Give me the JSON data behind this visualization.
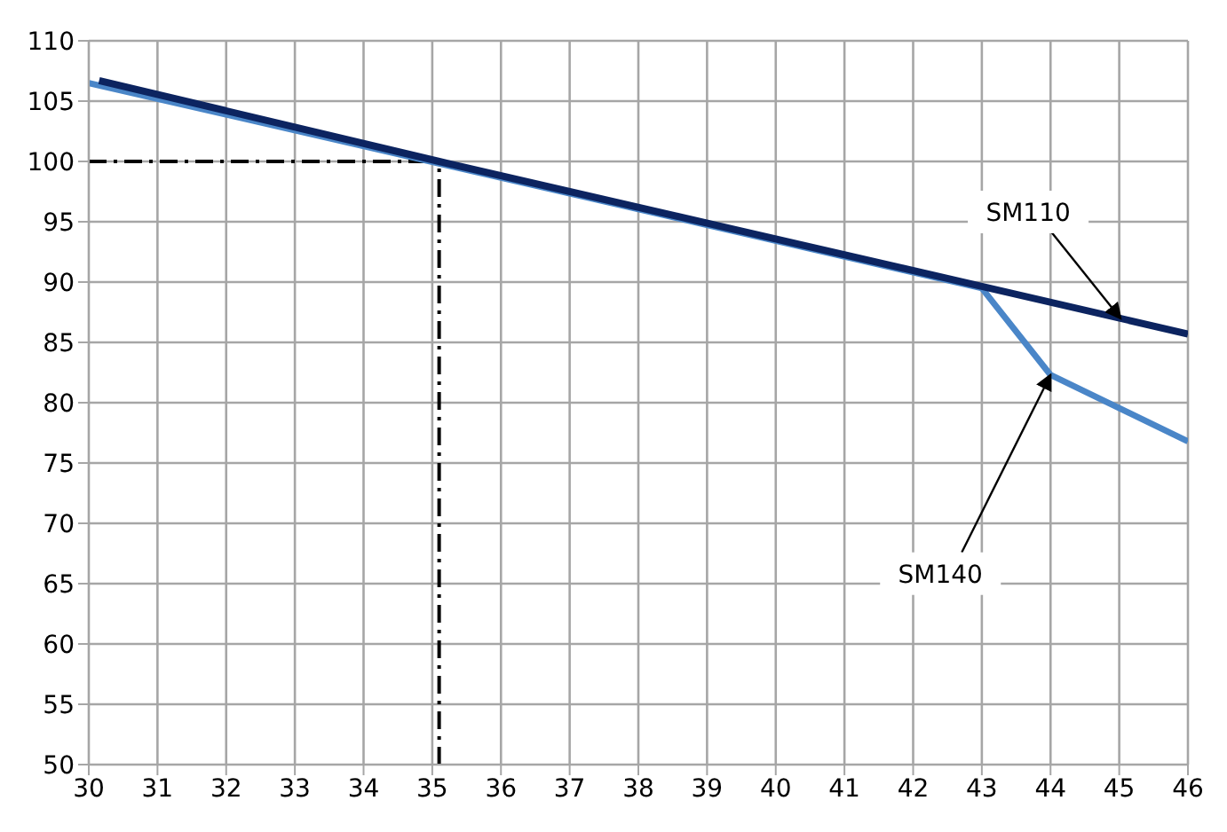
{
  "chart_data": {
    "type": "line",
    "series": [
      {
        "name": "SM140",
        "color": "#4a86c8",
        "x": [
          30,
          43,
          44,
          46
        ],
        "values": [
          106.5,
          89.5,
          82.3,
          76.8
        ]
      },
      {
        "name": "SM110",
        "color": "#0c2460",
        "x": [
          30.15,
          35.1,
          46
        ],
        "values": [
          106.7,
          100,
          85.7
        ]
      }
    ],
    "xlim": [
      30,
      46
    ],
    "xticks": [
      30,
      31,
      32,
      33,
      34,
      35,
      36,
      37,
      38,
      39,
      40,
      41,
      42,
      43,
      44,
      45,
      46
    ],
    "ylim": [
      50,
      110
    ],
    "yticks": [
      50,
      55,
      60,
      65,
      70,
      75,
      80,
      85,
      90,
      95,
      100,
      105,
      110
    ],
    "grid": true,
    "marker": "none",
    "line_style": "solid",
    "ref_lines": [
      {
        "axis": "y",
        "value": 100,
        "color": "#000000",
        "line_style": "dashdot"
      },
      {
        "axis": "x",
        "value": 35.1,
        "color": "#000000",
        "line_style": "dashdot"
      }
    ]
  }
}
